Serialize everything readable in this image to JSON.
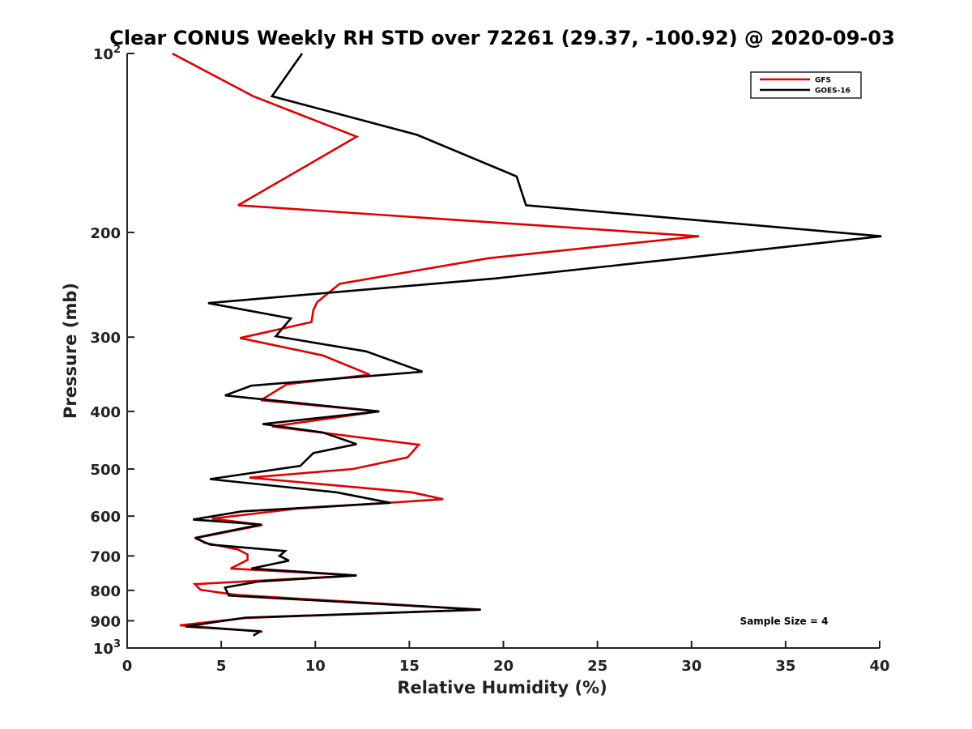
{
  "chart_data": {
    "type": "line",
    "title": "Clear CONUS Weekly RH STD over 72261 (29.37, -100.92) @ 2020-09-03",
    "xlabel": "Relative Humidity (%)",
    "ylabel": "Pressure (mb)",
    "xlim": [
      0,
      40
    ],
    "ylim": [
      100,
      1000
    ],
    "yscale": "log",
    "y_reversed": true,
    "x_ticks": [
      0,
      5,
      10,
      15,
      20,
      25,
      30,
      35,
      40
    ],
    "y_ticks": [
      {
        "value": 100,
        "base": "10",
        "exp": "2"
      },
      {
        "value": 200,
        "label": "200"
      },
      {
        "value": 300,
        "label": "300"
      },
      {
        "value": 400,
        "label": "400"
      },
      {
        "value": 500,
        "label": "500"
      },
      {
        "value": 600,
        "label": "600"
      },
      {
        "value": 700,
        "label": "700"
      },
      {
        "value": 800,
        "label": "800"
      },
      {
        "value": 900,
        "label": "900"
      },
      {
        "value": 1000,
        "base": "10",
        "exp": "3"
      }
    ],
    "grid": false,
    "legend": {
      "position": "top-right"
    },
    "annotation": "Sample Size = 4",
    "series": [
      {
        "name": "GFS",
        "color": "#e00000",
        "x": [
          2.4,
          6.7,
          12.2,
          9.3,
          5.9,
          30.4,
          19.2,
          11.3,
          10.1,
          9.9,
          9.8,
          6.0,
          10.4,
          12.9,
          8.5,
          7.1,
          13.4,
          7.7,
          15.5,
          14.9,
          12.0,
          6.5,
          15.1,
          16.8,
          9.0,
          4.5,
          7.2,
          3.7,
          4.1,
          5.9,
          6.4,
          6.4,
          5.5,
          12.2,
          3.6,
          3.9,
          5.8,
          18.8,
          6.3,
          2.8,
          7.2
        ],
        "y": [
          100,
          118,
          138,
          156,
          180,
          203,
          221,
          244,
          262,
          270,
          283,
          301,
          322,
          347,
          360,
          383,
          400,
          424,
          455,
          478,
          500,
          517,
          547,
          562,
          583,
          606,
          621,
          653,
          665,
          683,
          696,
          711,
          735,
          755,
          781,
          798,
          814,
          862,
          890,
          916,
          939
        ]
      },
      {
        "name": "GOES-16",
        "color": "#000000",
        "x": [
          9.3,
          7.7,
          15.4,
          20.7,
          21.2,
          40.1,
          30.1,
          19.6,
          4.3,
          8.7,
          7.9,
          12.7,
          15.7,
          6.6,
          5.2,
          13.4,
          7.2,
          10.4,
          12.2,
          9.9,
          9.2,
          4.4,
          11.1,
          14.0,
          6.1,
          3.5,
          7.1,
          3.6,
          4.4,
          8.4,
          8.1,
          8.6,
          6.6,
          12.2,
          7.0,
          5.2,
          5.4,
          18.8,
          6.3,
          3.1,
          7.1,
          6.7
        ],
        "y": [
          100,
          118,
          137,
          161,
          180,
          203,
          220,
          239,
          263,
          279,
          299,
          317,
          343,
          362,
          376,
          400,
          420,
          434,
          454,
          470,
          494,
          520,
          547,
          570,
          589,
          608,
          620,
          653,
          670,
          687,
          700,
          713,
          735,
          755,
          773,
          791,
          816,
          862,
          889,
          920,
          937,
          953
        ]
      }
    ]
  }
}
